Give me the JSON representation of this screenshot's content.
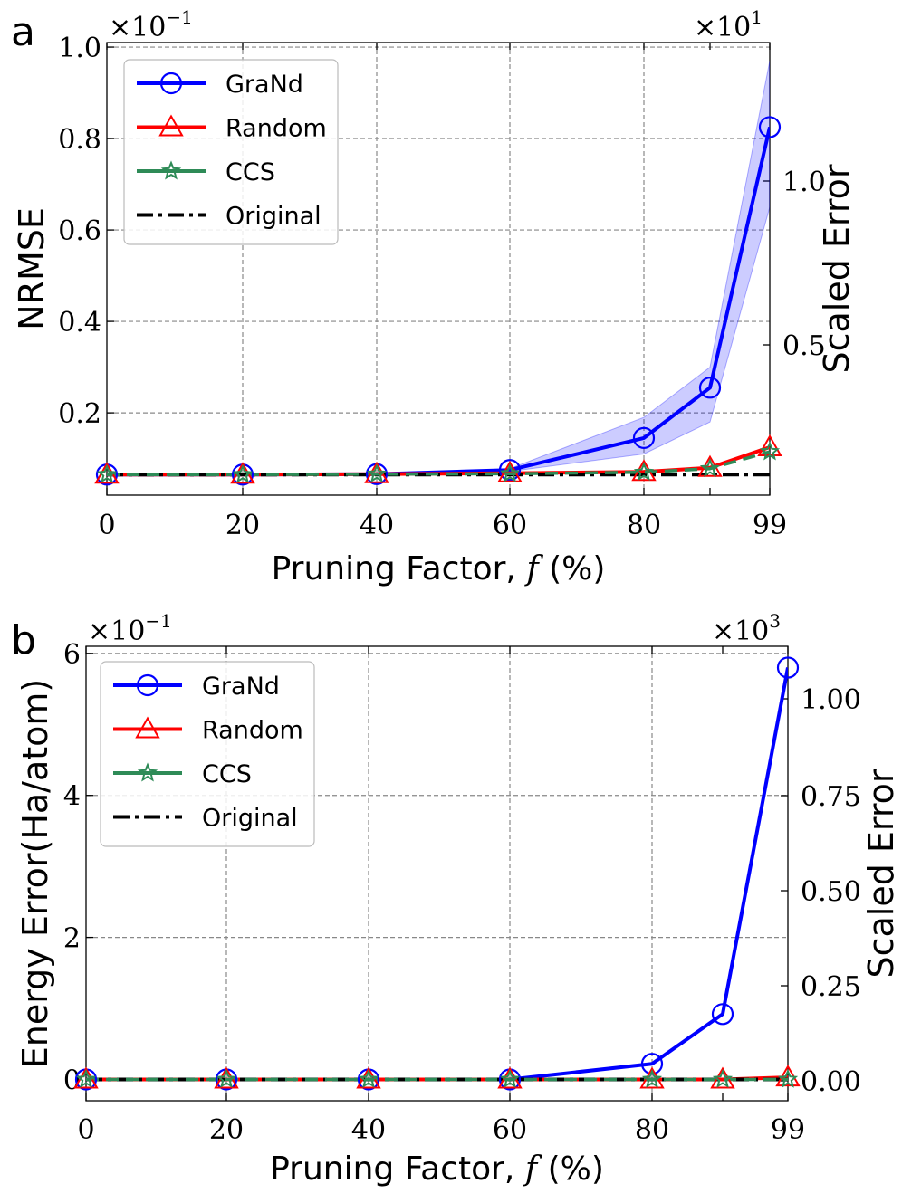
{
  "chart_data": [
    {
      "panel_label": "a",
      "type": "line",
      "x_label_text": "Pruning Factor, ",
      "x_label_var": "f",
      "x_label_unit": " (%)",
      "ylabel": "NRMSE",
      "ylabel_right": "Scaled Error",
      "x_categories": [
        "0",
        "20",
        "40",
        "60",
        "80",
        "90",
        "99"
      ],
      "x_tick_labels": [
        "0",
        "20",
        "40",
        "60",
        "80",
        "99"
      ],
      "y_ticks": [
        "0.2",
        "0.4",
        "0.6",
        "0.8",
        "1.0"
      ],
      "y_multiplier": "×10",
      "y_multiplier_exp": "−1",
      "ylim": [
        0.02,
        1.01
      ],
      "y_right_ticks": [
        "0.5",
        "1.0"
      ],
      "y_right_multiplier": "×10",
      "y_right_multiplier_exp": "1",
      "legend_position": "top-left",
      "grid": true,
      "series": [
        {
          "name": "GraNd",
          "color": "#0000ff",
          "marker": "circle",
          "values": [
            0.065,
            0.065,
            0.066,
            0.075,
            0.145,
            0.255,
            0.825
          ],
          "band_low": [
            0.065,
            0.065,
            0.066,
            0.072,
            0.11,
            0.18,
            0.65
          ],
          "band_high": [
            0.065,
            0.065,
            0.066,
            0.078,
            0.19,
            0.3,
            0.97
          ]
        },
        {
          "name": "Random",
          "color": "#ff0000",
          "marker": "triangle",
          "values": [
            0.065,
            0.065,
            0.066,
            0.068,
            0.071,
            0.08,
            0.125
          ]
        },
        {
          "name": "CCS",
          "color": "#2e8b57",
          "marker": "star",
          "values": [
            0.065,
            0.065,
            0.066,
            0.067,
            0.07,
            0.078,
            0.115
          ]
        },
        {
          "name": "Original",
          "color": "#000000",
          "marker": "none",
          "dash": "dashdot",
          "values": [
            0.065,
            0.065,
            0.065,
            0.065,
            0.065,
            0.065,
            0.065
          ]
        }
      ]
    },
    {
      "panel_label": "b",
      "type": "line",
      "x_label_text": "Pruning Factor, ",
      "x_label_var": "f",
      "x_label_unit": " (%)",
      "ylabel": "Energy Error(Ha/atom)",
      "ylabel_right": "Scaled Error",
      "x_categories": [
        "0",
        "20",
        "40",
        "60",
        "80",
        "90",
        "99"
      ],
      "x_tick_labels": [
        "0",
        "20",
        "40",
        "60",
        "80",
        "99"
      ],
      "y_ticks": [
        "0",
        "2",
        "4",
        "6"
      ],
      "y_multiplier": "×10",
      "y_multiplier_exp": "−1",
      "ylim": [
        -0.3,
        6.1
      ],
      "y_right_ticks": [
        "0.00",
        "0.25",
        "0.50",
        "0.75",
        "1.00"
      ],
      "y_right_multiplier": "×10",
      "y_right_multiplier_exp": "3",
      "legend_position": "top-left",
      "grid": true,
      "series": [
        {
          "name": "GraNd",
          "color": "#0000ff",
          "marker": "circle",
          "values": [
            0.0,
            0.0,
            0.0,
            0.0,
            0.22,
            0.92,
            5.8
          ]
        },
        {
          "name": "Random",
          "color": "#ff0000",
          "marker": "triangle",
          "values": [
            0.0,
            0.0,
            0.0,
            0.0,
            0.0,
            0.0,
            0.03
          ]
        },
        {
          "name": "CCS",
          "color": "#2e8b57",
          "marker": "star",
          "values": [
            0.0,
            0.0,
            0.0,
            0.0,
            0.0,
            0.0,
            0.0
          ]
        },
        {
          "name": "Original",
          "color": "#000000",
          "marker": "none",
          "dash": "dashdot",
          "values": [
            0.0,
            0.0,
            0.0,
            0.0,
            0.0,
            0.0,
            0.0
          ]
        }
      ]
    }
  ]
}
